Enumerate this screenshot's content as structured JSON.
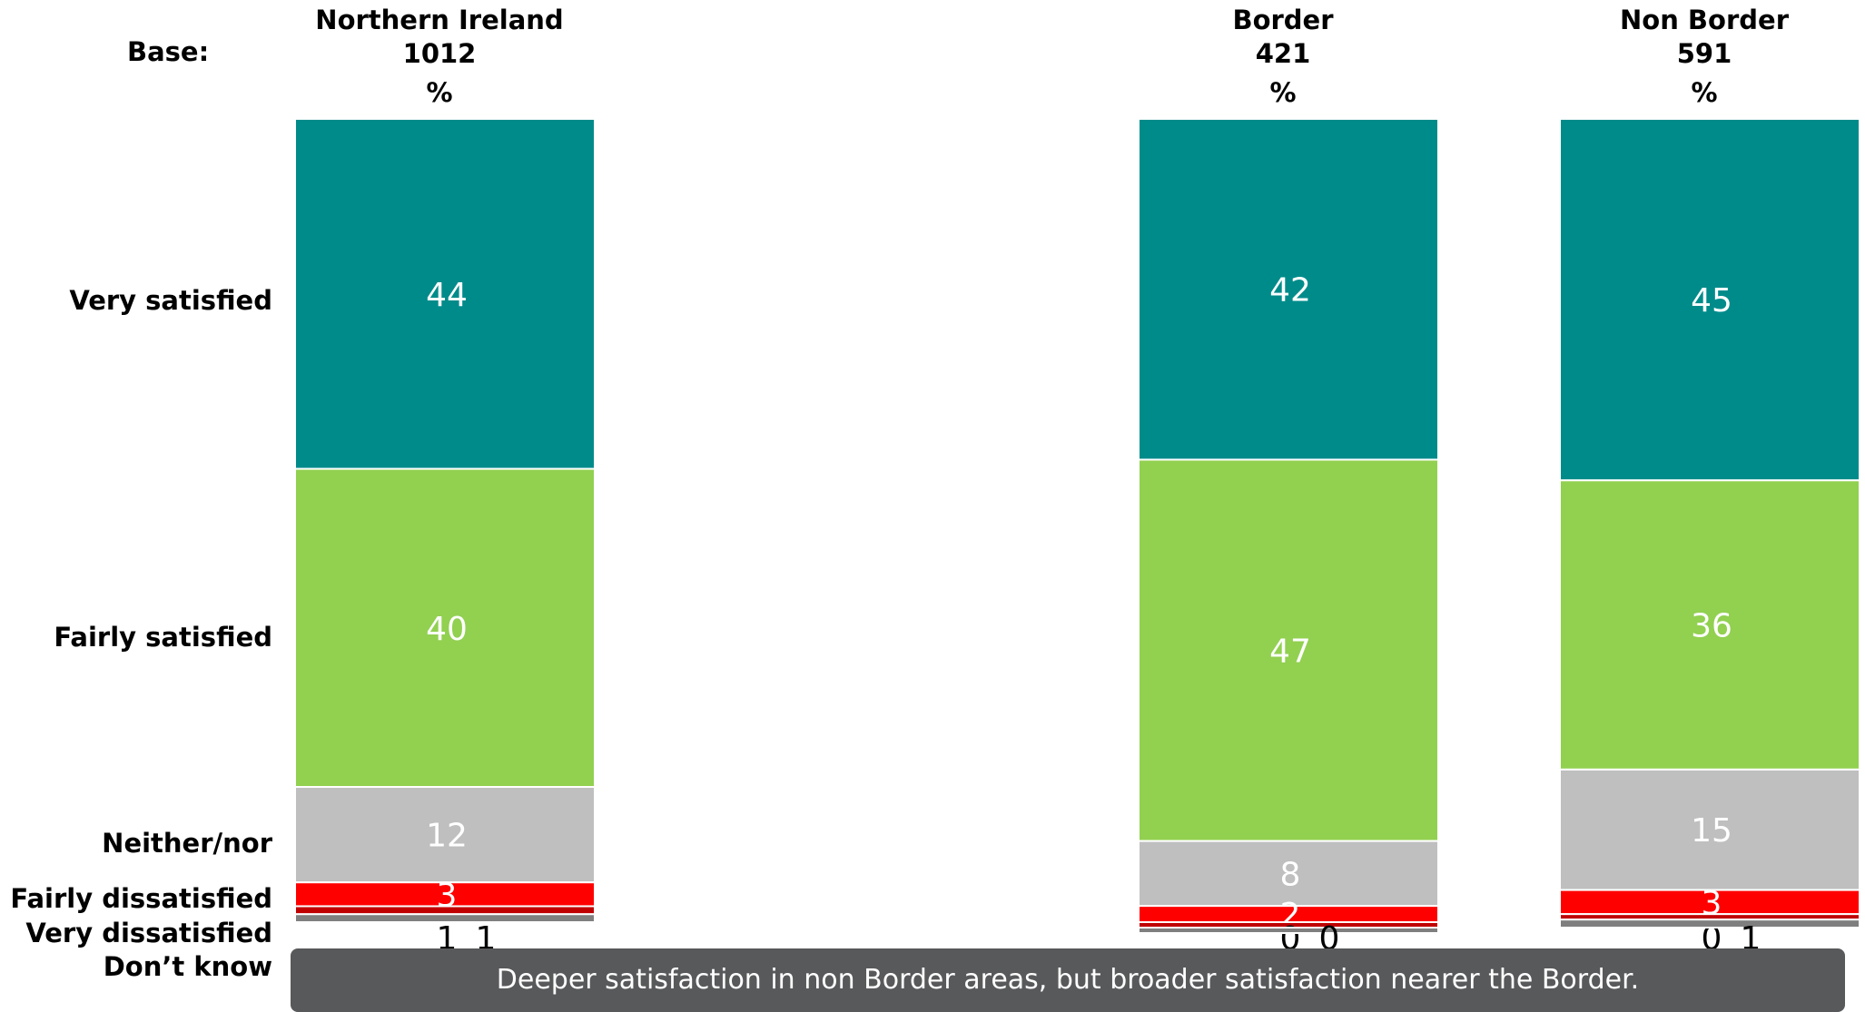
{
  "base_label": "Base:",
  "columns": [
    {
      "name": "Northern Ireland",
      "base": "1012",
      "unit": "%"
    },
    {
      "name": "Border",
      "base": "421",
      "unit": "%"
    },
    {
      "name": "Non Border",
      "base": "591",
      "unit": "%"
    }
  ],
  "categories": [
    "Very satisfied",
    "Fairly satisfied",
    "Neither/nor",
    "Fairly dissatisfied",
    "Very dissatisfied",
    "Don’t know"
  ],
  "note": "Deeper satisfaction in non Border areas, but broader satisfaction nearer the Border.",
  "colors": {
    "very_satisfied": "#008b8b",
    "fairly_satisfied": "#92d050",
    "neither_nor": "#bfbfbf",
    "fairly_dissatisfied": "#ff0000",
    "very_dissatisfied": "#c00000",
    "dont_know": "#7f7f7f",
    "note_bg": "#58595b"
  },
  "chart_data": {
    "type": "bar",
    "stacked": true,
    "orientation": "vertical",
    "categories": [
      "Northern Ireland",
      "Border",
      "Non Border"
    ],
    "series": [
      {
        "name": "Very satisfied",
        "values": [
          44,
          42,
          45
        ]
      },
      {
        "name": "Fairly satisfied",
        "values": [
          40,
          47,
          36
        ]
      },
      {
        "name": "Neither/nor",
        "values": [
          12,
          8,
          15
        ]
      },
      {
        "name": "Fairly dissatisfied",
        "values": [
          3,
          2,
          3
        ]
      },
      {
        "name": "Very dissatisfied",
        "values": [
          1,
          0,
          0
        ]
      },
      {
        "name": "Don’t know",
        "values": [
          1,
          0,
          1
        ]
      }
    ],
    "ylim": [
      0,
      100
    ],
    "grid": false,
    "legend": "left"
  }
}
